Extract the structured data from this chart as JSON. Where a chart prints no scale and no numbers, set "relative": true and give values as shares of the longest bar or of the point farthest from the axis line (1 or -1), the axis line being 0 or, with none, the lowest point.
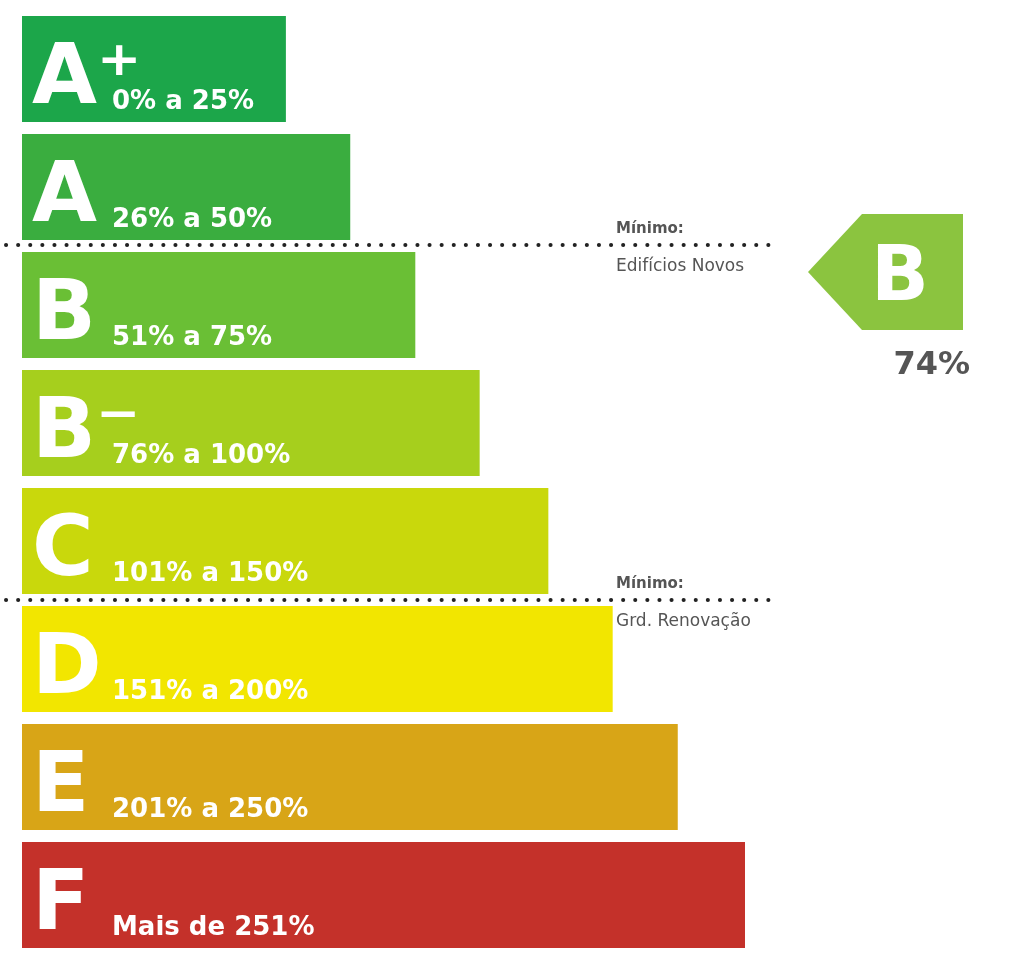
{
  "chart_data": {
    "type": "bar",
    "orientation": "horizontal",
    "relative": true,
    "categories": [
      "A⁺",
      "A",
      "B",
      "B⁻",
      "C",
      "D",
      "E",
      "F"
    ],
    "values": [
      0.365,
      0.454,
      0.544,
      0.633,
      0.728,
      0.817,
      0.907,
      1
    ],
    "colors": [
      "#1ca64a",
      "#3aad3f",
      "#6abf35",
      "#a6cf1d",
      "#c9d80c",
      "#f2e600",
      "#d8a517",
      "#c4312a"
    ],
    "annotations": [
      {
        "text": "0% a 25%",
        "y": "A⁺"
      },
      {
        "text": "26% a 50%",
        "y": "A"
      },
      {
        "text": "51% a 75%",
        "y": "B"
      },
      {
        "text": "76% a 100%",
        "y": "B⁻"
      },
      {
        "text": "101% a 150%",
        "y": "C"
      },
      {
        "text": "151% a 200%",
        "y": "D"
      },
      {
        "text": "201% a 250%",
        "y": "E"
      },
      {
        "text": "Mais de 251%",
        "y": "F"
      },
      "Mínimo:\nEdifícios Novos",
      "Mínimo:\nGrd. Renovação",
      "B",
      "74%"
    ],
    "legend": false
  }
}
